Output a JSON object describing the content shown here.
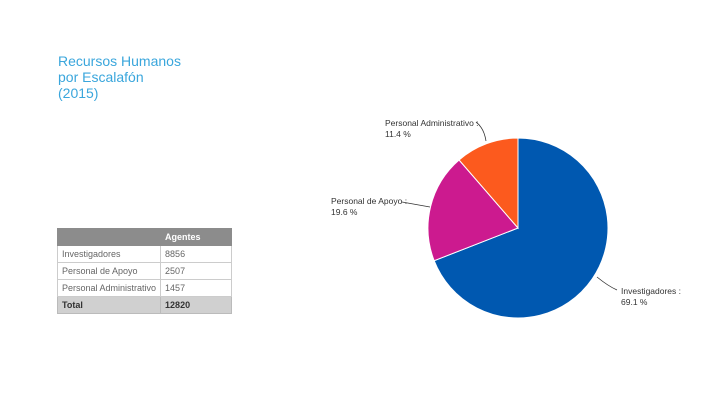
{
  "title_lines": [
    "Recursos Humanos",
    "por Escalafón",
    "(2015)"
  ],
  "table": {
    "headers": [
      "",
      "Agentes"
    ],
    "rows": [
      [
        "Investigadores",
        "8856"
      ],
      [
        "Personal de Apoyo",
        "2507"
      ],
      [
        "Personal Administrativo",
        "1457"
      ]
    ],
    "total": [
      "Total",
      "12820"
    ]
  },
  "chart_data": {
    "type": "pie",
    "title": "Recursos Humanos por Escalafón (2015)",
    "categories": [
      "Investigadores",
      "Personal de Apoyo",
      "Personal Administrativo"
    ],
    "values": [
      8856,
      2507,
      1457
    ],
    "percent_labels": [
      "69.1 %",
      "19.6 %",
      "11.4 %"
    ],
    "label_names": [
      "Investigadores :",
      "Personal de Apoyo :",
      "Personal Administrativo :"
    ],
    "colors": [
      "#0058b0",
      "#cc1a8f",
      "#fc5a1e"
    ]
  }
}
